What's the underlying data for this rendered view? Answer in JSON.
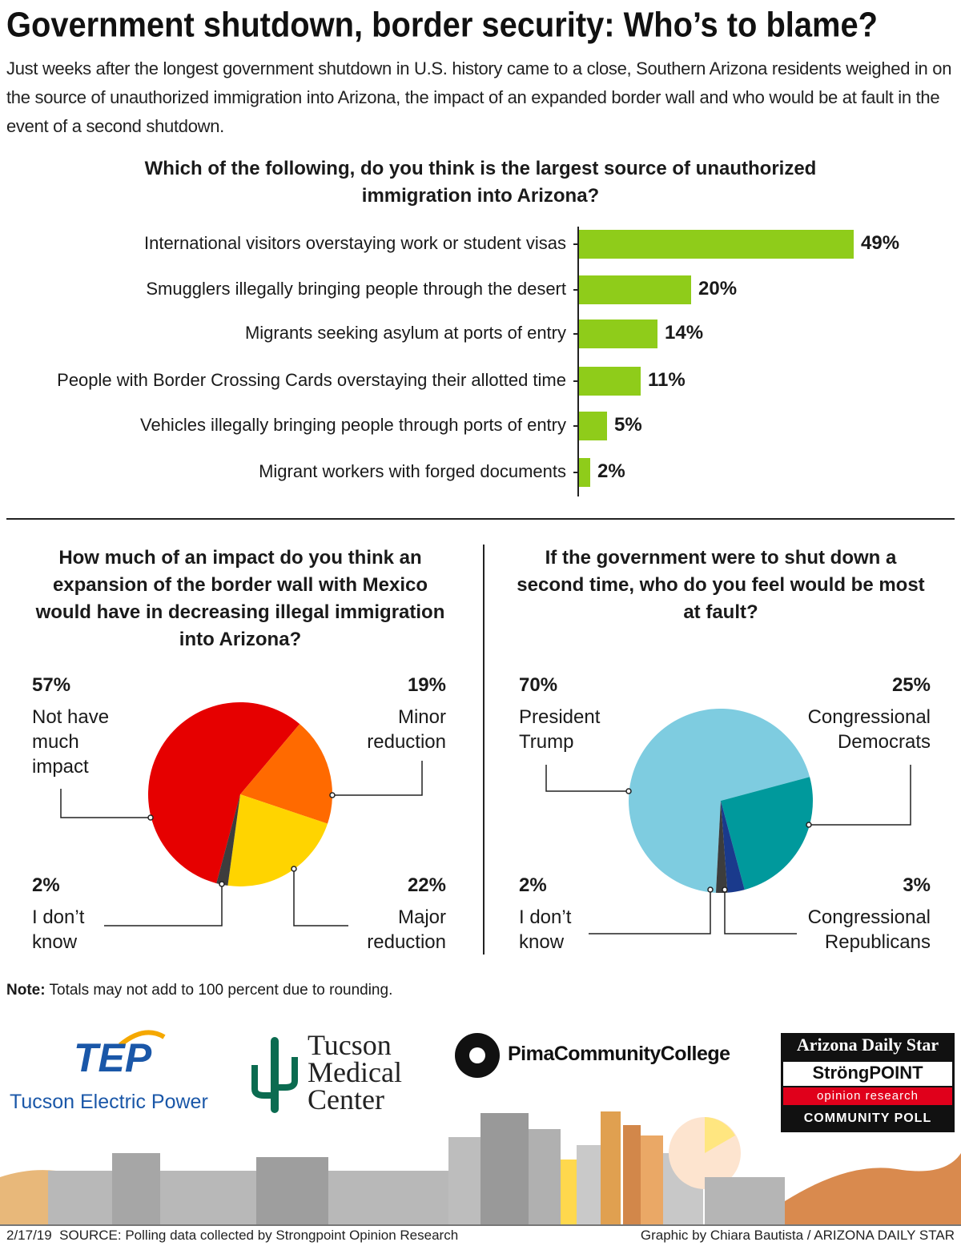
{
  "title": "Government shutdown, border security: Who’s to blame?",
  "subtitle": "Just weeks after the longest government shutdown in U.S. history came to a close, Southern Arizona residents weighed in on the source of unauthorized immigration into Arizona, the impact of an expanded border wall and who would be at fault in the event of a second shutdown.",
  "chart_data": [
    {
      "type": "bar",
      "title": "Which of the following, do you think is the largest source of unauthorized immigration into Arizona?",
      "categories": [
        "International visitors overstaying work or student visas",
        "Smugglers illegally bringing people through the desert",
        "Migrants seeking asylum at ports of entry",
        "People with Border Crossing Cards overstaying their allotted time",
        "Vehicles illegally bringing people through ports of entry",
        "Migrant workers with forged documents"
      ],
      "values": [
        49,
        20,
        14,
        11,
        5,
        2
      ],
      "value_labels": [
        "49%",
        "20%",
        "14%",
        "11%",
        "5%",
        "2%"
      ],
      "color": "#8fcc1a"
    },
    {
      "type": "pie",
      "title": "How much of an impact do you think an expansion of the border wall with Mexico would have in decreasing illegal immigration into Arizona?",
      "categories": [
        "Not have much impact",
        "Minor reduction",
        "Major reduction",
        "I don’t know"
      ],
      "values": [
        57,
        19,
        22,
        2
      ],
      "value_labels": [
        "57%",
        "19%",
        "22%",
        "2%"
      ],
      "colors": [
        "#e60000",
        "#ff6a00",
        "#ffd400",
        "#3d3d3d"
      ]
    },
    {
      "type": "pie",
      "title": "If the government were to shut down a second time, who do you feel would be most at fault?",
      "categories": [
        "President Trump",
        "Congressional Democrats",
        "Congressional Republicans",
        "I don’t know"
      ],
      "values": [
        70,
        25,
        3,
        2
      ],
      "value_labels": [
        "70%",
        "25%",
        "3%",
        "2%"
      ],
      "colors": [
        "#7ecce0",
        "#00999c",
        "#1a3a8c",
        "#3d3d3d"
      ]
    }
  ],
  "note": {
    "label": "Note:",
    "text": "Totals may not add to 100 percent due to rounding."
  },
  "sponsors": {
    "tep": "TEP",
    "tep_name": "Tucson Electric Power",
    "tmc": "Tucson Medical Center",
    "pima": "PimaCommunityCollege",
    "star": "Arizona Daily Star",
    "strongpoint": "StröngPOINT",
    "opinion": "opinion research",
    "poll": "COMMUNITY POLL"
  },
  "footer": {
    "source": "2/17/19  SOURCE: Polling data collected by Strongpoint Opinion Research",
    "credit": "Graphic by Chiara Bautista / ARIZONA DAILY STAR"
  }
}
